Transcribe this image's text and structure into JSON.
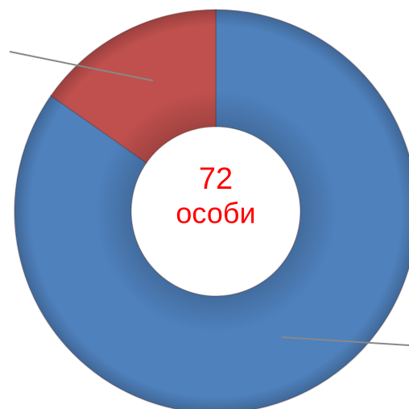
{
  "chart_data": {
    "type": "donut",
    "values": [
      61,
      11
    ],
    "colors": [
      "#4f81bd",
      "#c0504d"
    ],
    "center_text": [
      "72",
      "особи"
    ]
  }
}
